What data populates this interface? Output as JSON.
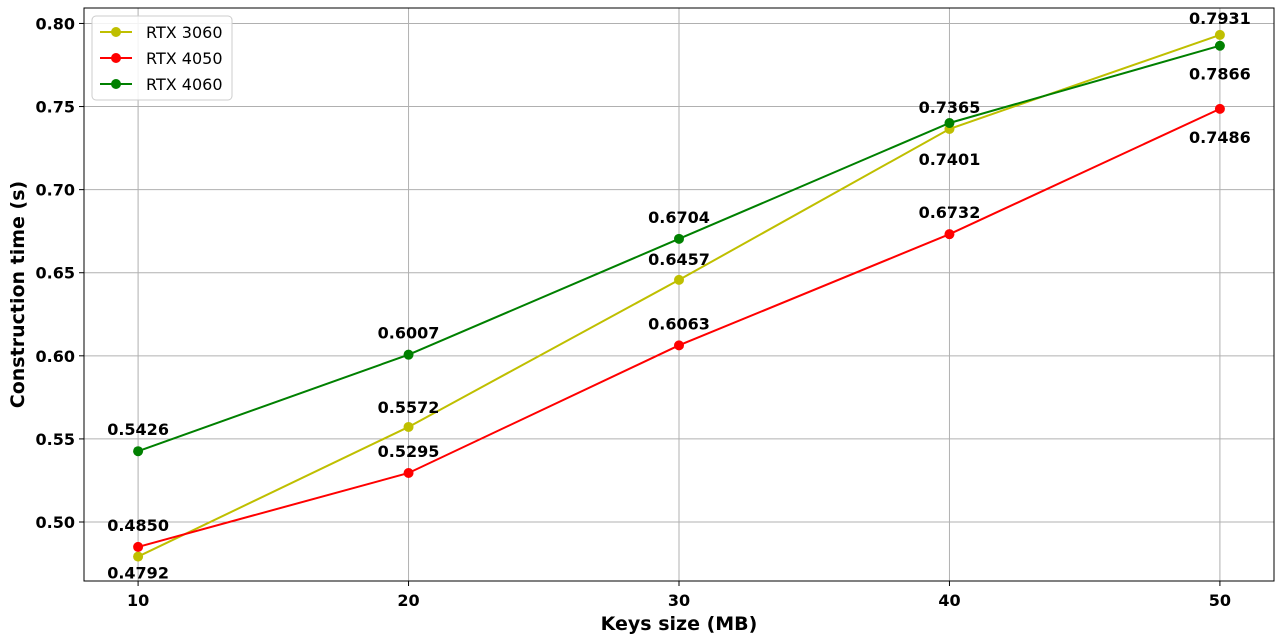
{
  "chart_data": {
    "type": "line",
    "x": [
      10,
      20,
      30,
      40,
      50
    ],
    "xlabel": "Keys size (MB)",
    "ylabel": "Construction time (s)",
    "xlim": [
      8,
      52
    ],
    "ylim": [
      0.4645,
      0.8093
    ],
    "xticks": [
      "10",
      "20",
      "30",
      "40",
      "50"
    ],
    "yticks": [
      "0.50",
      "0.55",
      "0.60",
      "0.65",
      "0.70",
      "0.75",
      "0.80"
    ],
    "grid": true,
    "legend_position": "top-left",
    "series": [
      {
        "name": "RTX 3060",
        "color": "#bfbf00",
        "values": [
          0.4792,
          0.5572,
          0.6457,
          0.7365,
          0.7931
        ],
        "labels": [
          "0.4792",
          "0.5572",
          "0.6457",
          "0.7365",
          "0.7931"
        ]
      },
      {
        "name": "RTX 4050",
        "color": "#ff0000",
        "values": [
          0.485,
          0.5295,
          0.6063,
          0.6732,
          0.7486
        ],
        "labels": [
          "0.4850",
          "0.5295",
          "0.6063",
          "0.6732",
          "0.7486"
        ]
      },
      {
        "name": "RTX 4060",
        "color": "#008000",
        "values": [
          0.5426,
          0.6007,
          0.6704,
          0.7401,
          0.7866
        ],
        "labels": [
          "0.5426",
          "0.6007",
          "0.6704",
          "0.7401",
          "0.7866"
        ]
      }
    ]
  }
}
